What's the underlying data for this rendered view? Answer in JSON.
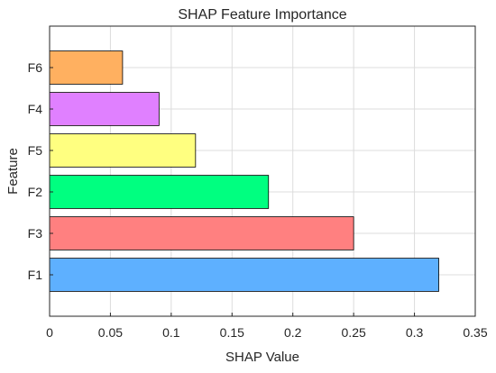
{
  "chart_data": {
    "type": "bar",
    "orientation": "horizontal",
    "title": "SHAP Feature Importance",
    "xlabel": "SHAP Value",
    "ylabel": "Feature",
    "categories": [
      "F1",
      "F3",
      "F2",
      "F5",
      "F4",
      "F6"
    ],
    "values": [
      0.32,
      0.25,
      0.18,
      0.12,
      0.09,
      0.06
    ],
    "colors": [
      "#5eb0ff",
      "#ff8080",
      "#00ff80",
      "#ffff80",
      "#e080ff",
      "#ffb060"
    ],
    "xlim": [
      0,
      0.35
    ],
    "xticks": [
      0,
      0.05,
      0.1,
      0.15,
      0.2,
      0.25,
      0.3,
      0.35
    ],
    "xtick_labels": [
      "0",
      "0.05",
      "0.1",
      "0.15",
      "0.2",
      "0.25",
      "0.3",
      "0.35"
    ],
    "grid": true
  }
}
